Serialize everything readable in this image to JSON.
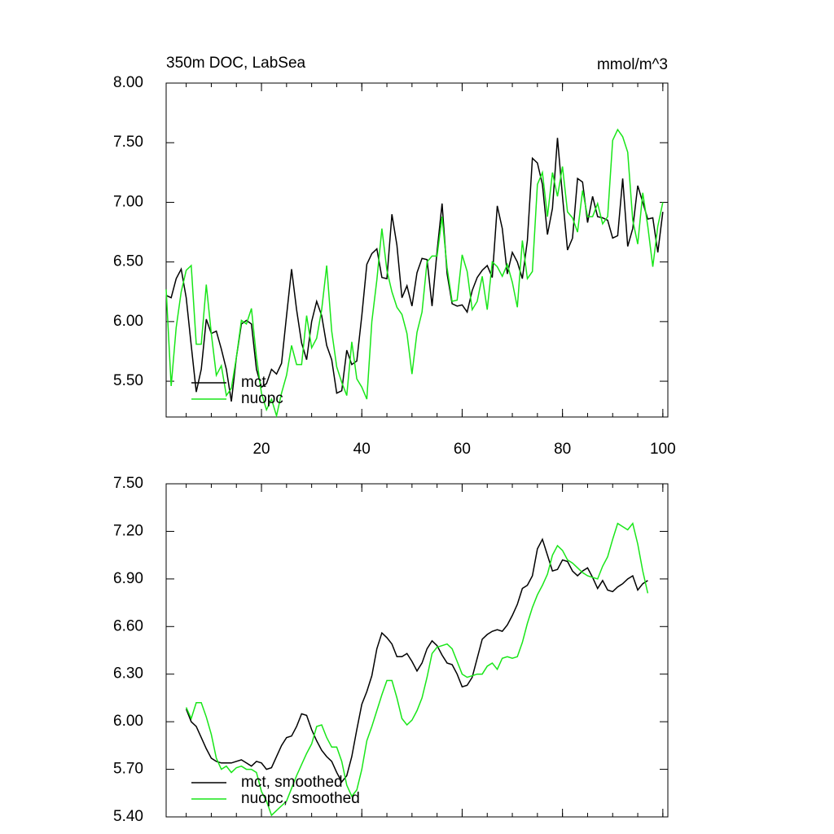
{
  "chart_data": [
    {
      "type": "line",
      "title": "350m DOC, LabSea",
      "units": "mmol/m^3",
      "x": [
        1,
        2,
        3,
        4,
        5,
        6,
        7,
        8,
        9,
        10,
        11,
        12,
        13,
        14,
        15,
        16,
        17,
        18,
        19,
        20,
        21,
        22,
        23,
        24,
        25,
        26,
        27,
        28,
        29,
        30,
        31,
        32,
        33,
        34,
        35,
        36,
        37,
        38,
        39,
        40,
        41,
        42,
        43,
        44,
        45,
        46,
        47,
        48,
        49,
        50,
        51,
        52,
        53,
        54,
        55,
        56,
        57,
        58,
        59,
        60,
        61,
        62,
        63,
        64,
        65,
        66,
        67,
        68,
        69,
        70,
        71,
        72,
        73,
        74,
        75,
        76,
        77,
        78,
        79,
        80,
        81,
        82,
        83,
        84,
        85,
        86,
        87,
        88,
        89,
        90,
        91,
        92,
        93,
        94,
        95,
        96,
        97,
        98,
        99,
        100
      ],
      "series": [
        {
          "name": "mct",
          "color": "#000000",
          "values": [
            6.22,
            6.2,
            6.36,
            6.44,
            6.2,
            5.8,
            5.41,
            5.6,
            6.02,
            5.9,
            5.92,
            5.77,
            5.6,
            5.33,
            5.7,
            5.98,
            6.01,
            5.98,
            5.6,
            5.45,
            5.48,
            5.6,
            5.56,
            5.65,
            6.05,
            6.44,
            6.1,
            5.82,
            5.68,
            6.0,
            6.17,
            6.05,
            5.8,
            5.68,
            5.4,
            5.42,
            5.76,
            5.64,
            5.67,
            6.05,
            6.48,
            6.57,
            6.61,
            6.37,
            6.36,
            6.9,
            6.64,
            6.2,
            6.3,
            6.13,
            6.41,
            6.53,
            6.52,
            6.13,
            6.59,
            6.99,
            6.4,
            6.15,
            6.13,
            6.14,
            6.08,
            6.26,
            6.37,
            6.43,
            6.47,
            6.37,
            6.97,
            6.78,
            6.4,
            6.58,
            6.5,
            6.36,
            6.68,
            7.37,
            7.33,
            7.15,
            6.73,
            6.95,
            7.54,
            7.05,
            6.6,
            6.7,
            7.2,
            7.17,
            6.83,
            7.05,
            6.88,
            6.87,
            6.85,
            6.7,
            6.72,
            7.2,
            6.63,
            6.78,
            7.14,
            7.0,
            6.86,
            6.87,
            6.58,
            6.92
          ]
        },
        {
          "name": "nuopc",
          "color": "#19e619",
          "values": [
            6.27,
            5.46,
            5.95,
            6.25,
            6.43,
            6.47,
            5.81,
            5.81,
            6.31,
            5.9,
            5.55,
            5.63,
            5.38,
            5.44,
            5.7,
            6.01,
            5.98,
            6.11,
            5.7,
            5.4,
            5.26,
            5.35,
            5.21,
            5.4,
            5.55,
            5.8,
            5.64,
            5.64,
            6.05,
            5.78,
            5.86,
            6.1,
            6.47,
            5.92,
            5.62,
            5.49,
            5.38,
            5.83,
            5.52,
            5.45,
            5.35,
            6.0,
            6.35,
            6.78,
            6.43,
            6.25,
            6.12,
            6.06,
            5.9,
            5.56,
            5.91,
            6.08,
            6.5,
            6.55,
            6.55,
            6.88,
            6.45,
            6.17,
            6.18,
            6.56,
            6.42,
            6.1,
            6.17,
            6.38,
            6.1,
            6.5,
            6.46,
            6.38,
            6.48,
            6.33,
            6.12,
            6.68,
            6.36,
            6.42,
            7.15,
            7.25,
            6.88,
            7.25,
            7.05,
            7.3,
            6.92,
            6.87,
            6.75,
            7.1,
            6.88,
            6.88,
            6.99,
            6.82,
            6.88,
            7.52,
            7.61,
            7.55,
            7.42,
            6.85,
            6.65,
            7.08,
            6.8,
            6.46,
            6.8,
            7.0
          ]
        }
      ],
      "xlim": [
        1,
        101
      ],
      "xticks": [
        20,
        40,
        60,
        80,
        100
      ],
      "ylim": [
        5.2,
        8.0
      ],
      "yticks": [
        {
          "value": 5.5,
          "label": "5.50"
        },
        {
          "value": 6,
          "label": "6.00"
        },
        {
          "value": 6.5,
          "label": "6.50"
        },
        {
          "value": 7,
          "label": "7.00"
        },
        {
          "value": 7.5,
          "label": "7.50"
        },
        {
          "value": 8,
          "label": "8.00"
        }
      ],
      "legend": "lower left"
    },
    {
      "type": "line",
      "x": [
        5,
        6,
        7,
        8,
        9,
        10,
        11,
        12,
        13,
        14,
        15,
        16,
        17,
        18,
        19,
        20,
        21,
        22,
        23,
        24,
        25,
        26,
        27,
        28,
        29,
        30,
        31,
        32,
        33,
        34,
        35,
        36,
        37,
        38,
        39,
        40,
        41,
        42,
        43,
        44,
        45,
        46,
        47,
        48,
        49,
        50,
        51,
        52,
        53,
        54,
        55,
        56,
        57,
        58,
        59,
        60,
        61,
        62,
        63,
        64,
        65,
        66,
        67,
        68,
        69,
        70,
        71,
        72,
        73,
        74,
        75,
        76,
        77,
        78,
        79,
        80,
        81,
        82,
        83,
        84,
        85,
        86,
        87,
        88,
        89,
        90,
        91,
        92,
        93,
        94,
        95,
        96,
        97
      ],
      "series": [
        {
          "name": "mct, smoothed",
          "color": "#000000",
          "values": [
            6.08,
            6.0,
            5.97,
            5.9,
            5.83,
            5.77,
            5.75,
            5.74,
            5.74,
            5.74,
            5.75,
            5.76,
            5.74,
            5.72,
            5.75,
            5.74,
            5.7,
            5.71,
            5.78,
            5.85,
            5.9,
            5.91,
            5.97,
            6.05,
            6.04,
            5.95,
            5.88,
            5.82,
            5.78,
            5.75,
            5.68,
            5.62,
            5.66,
            5.78,
            5.95,
            6.11,
            6.19,
            6.29,
            6.46,
            6.56,
            6.53,
            6.49,
            6.41,
            6.41,
            6.43,
            6.38,
            6.32,
            6.37,
            6.46,
            6.51,
            6.48,
            6.42,
            6.37,
            6.36,
            6.3,
            6.22,
            6.23,
            6.28,
            6.4,
            6.52,
            6.55,
            6.57,
            6.58,
            6.57,
            6.61,
            6.67,
            6.74,
            6.84,
            6.86,
            6.92,
            7.09,
            7.15,
            7.05,
            6.95,
            6.96,
            7.02,
            7.01,
            6.95,
            6.92,
            6.95,
            6.97,
            6.91,
            6.84,
            6.89,
            6.83,
            6.82,
            6.85,
            6.87,
            6.9,
            6.92,
            6.83,
            6.87,
            6.89
          ]
        },
        {
          "name": "nuopc, smoothed",
          "color": "#19e619",
          "values": [
            6.09,
            6.02,
            6.12,
            6.12,
            6.03,
            5.92,
            5.77,
            5.7,
            5.72,
            5.68,
            5.71,
            5.72,
            5.7,
            5.7,
            5.68,
            5.56,
            5.5,
            5.41,
            5.44,
            5.47,
            5.5,
            5.58,
            5.66,
            5.73,
            5.8,
            5.86,
            5.97,
            5.98,
            5.9,
            5.84,
            5.84,
            5.75,
            5.6,
            5.53,
            5.57,
            5.7,
            5.88,
            5.97,
            6.07,
            6.17,
            6.26,
            6.26,
            6.15,
            6.02,
            5.98,
            6.01,
            6.07,
            6.15,
            6.28,
            6.43,
            6.47,
            6.48,
            6.49,
            6.46,
            6.38,
            6.3,
            6.28,
            6.29,
            6.3,
            6.3,
            6.35,
            6.37,
            6.33,
            6.4,
            6.41,
            6.4,
            6.41,
            6.5,
            6.62,
            6.72,
            6.8,
            6.86,
            6.93,
            7.05,
            7.11,
            7.08,
            7.02,
            7.0,
            6.97,
            6.94,
            6.92,
            6.91,
            6.9,
            6.98,
            7.04,
            7.15,
            7.25,
            7.23,
            7.21,
            7.25,
            7.12,
            6.95,
            6.81
          ]
        }
      ],
      "xlim": [
        1,
        101
      ],
      "xticks": [
        20,
        40,
        60,
        80,
        100
      ],
      "ylim": [
        5.4,
        7.5
      ],
      "yticks": [
        {
          "value": 5.4,
          "label": "5.40"
        },
        {
          "value": 5.7,
          "label": "5.70"
        },
        {
          "value": 6,
          "label": "6.00"
        },
        {
          "value": 6.3,
          "label": "6.30"
        },
        {
          "value": 6.6,
          "label": "6.60"
        },
        {
          "value": 6.9,
          "label": "6.90"
        },
        {
          "value": 7.2,
          "label": "7.20"
        },
        {
          "value": 7.5,
          "label": "7.50"
        }
      ],
      "legend": "lower left"
    }
  ]
}
